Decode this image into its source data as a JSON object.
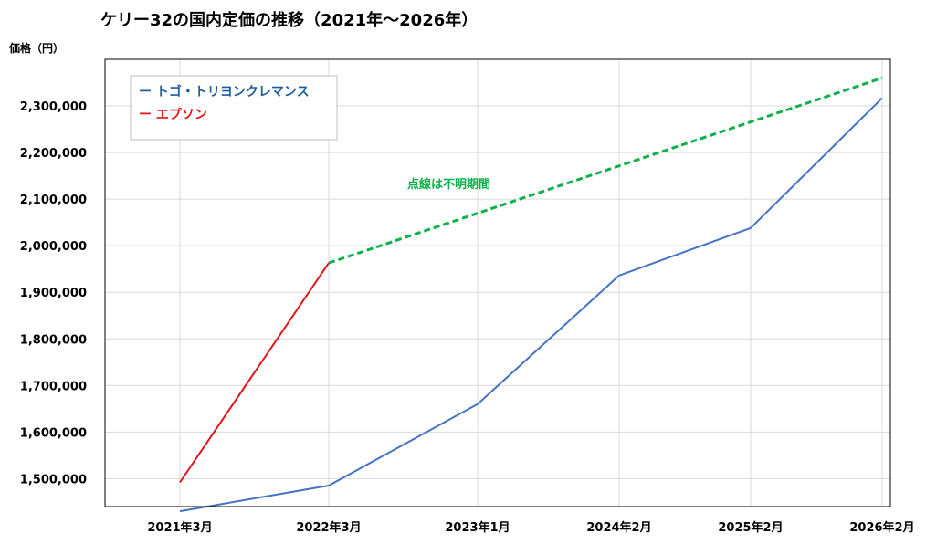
{
  "chart_data": {
    "type": "line",
    "title": "ケリー32の国内定価の推移（2021年～2026年）",
    "ylabel": "価格（円）",
    "xlabel": "",
    "categories": [
      "2021年3月",
      "2022年3月",
      "2023年1月",
      "2024年2月",
      "2025年2月",
      "2026年2月"
    ],
    "x_dates": [
      "2021-03",
      "2022-03",
      "2023-01",
      "2024-02",
      "2025-02",
      "2026-02"
    ],
    "ylim": [
      1440000,
      2400000
    ],
    "yticks": [
      1500000,
      1600000,
      1700000,
      1800000,
      1900000,
      2000000,
      2100000,
      2200000,
      2300000
    ],
    "ytick_labels": [
      "1,500,000",
      "1,600,000",
      "1,700,000",
      "1,800,000",
      "1,900,000",
      "2,000,000",
      "2,100,000",
      "2,200,000",
      "2,300,000"
    ],
    "grid": true,
    "legend_position": "top-left",
    "series": [
      {
        "name": "トゴ・トリヨンクレマンス",
        "legend_label": "ー トゴ・トリヨンクレマンス",
        "color": "#4472c4",
        "style": "solid",
        "points": [
          {
            "x": "2021-03",
            "y": 1430000
          },
          {
            "x": "2022-03",
            "y": 1485000
          },
          {
            "x": "2023-01",
            "y": 1660000
          },
          {
            "x": "2024-02",
            "y": 1936000
          },
          {
            "x": "2025-02",
            "y": 2038000
          },
          {
            "x": "2026-02",
            "y": 2317000
          }
        ]
      },
      {
        "name": "エプソン",
        "legend_label": "ー エプソン",
        "color": "#e0161b",
        "style": "solid",
        "points": [
          {
            "x": "2021-03",
            "y": 1492000
          },
          {
            "x": "2022-03",
            "y": 1963000
          }
        ]
      },
      {
        "name": "",
        "color": "#0db14b",
        "style": "dashed",
        "points": [
          {
            "x": "2022-03",
            "y": 1963000
          },
          {
            "x": "2026-02",
            "y": 2360000
          }
        ]
      }
    ],
    "annotations": [
      {
        "text": "点線は不明期間",
        "color": "#0db14b"
      }
    ],
    "colors": {
      "legend_blue_text": "#1f5c99",
      "legend_red_text": "#e0161b",
      "grid": "#d9d9d9",
      "axis": "#000000"
    }
  }
}
